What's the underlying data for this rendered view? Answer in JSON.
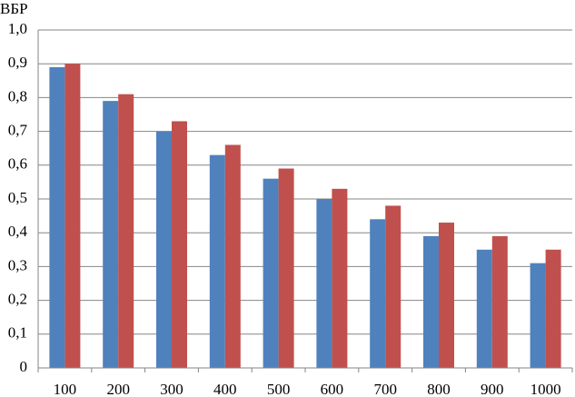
{
  "chart_data": {
    "type": "bar",
    "ylabel": "ВБР",
    "categories": [
      "100",
      "200",
      "300",
      "400",
      "500",
      "600",
      "700",
      "800",
      "900",
      "1000"
    ],
    "series": [
      {
        "color": "#4f81bd",
        "values": [
          0.89,
          0.79,
          0.7,
          0.63,
          0.56,
          0.5,
          0.44,
          0.39,
          0.35,
          0.31
        ]
      },
      {
        "color": "#c0504d",
        "values": [
          0.9,
          0.81,
          0.73,
          0.66,
          0.59,
          0.53,
          0.48,
          0.43,
          0.39,
          0.35
        ]
      }
    ],
    "ylim": [
      0,
      1
    ],
    "yticks": [
      0,
      {
        "value": 0.1,
        "label": "0,1"
      },
      {
        "value": 0.2,
        "label": "0,2"
      },
      {
        "value": 0.3,
        "label": "0,3"
      },
      {
        "value": 0.4,
        "label": "0,4"
      },
      {
        "value": 0.5,
        "label": "0,5"
      },
      {
        "value": 0.6,
        "label": "0,6"
      },
      {
        "value": 0.7,
        "label": "0,7"
      },
      {
        "value": 0.8,
        "label": "0,8"
      },
      {
        "value": 0.9,
        "label": "0,9"
      },
      {
        "value": 1,
        "label": "1,0"
      }
    ],
    "grid": true
  }
}
